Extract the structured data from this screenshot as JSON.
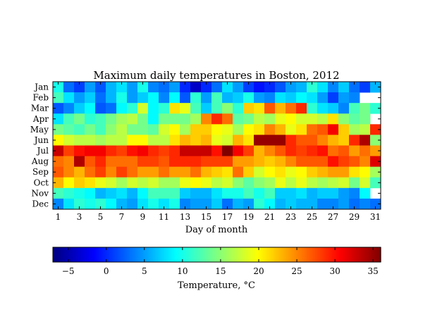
{
  "chart_data": {
    "type": "heatmap",
    "title": "Maximum daily temperatures in Boston, 2012",
    "xlabel": "Day of month",
    "colorbar_label": "Temperature, °C",
    "colormap": "jet",
    "vmin": -7,
    "vmax": 36,
    "colorbar_ticks": [
      "−5",
      "0",
      "5",
      "10",
      "15",
      "20",
      "25",
      "30",
      "35"
    ],
    "colorbar_tick_values": [
      -5,
      0,
      5,
      10,
      15,
      20,
      25,
      30,
      35
    ],
    "x_tick_labels": [
      "1",
      "3",
      "5",
      "7",
      "9",
      "11",
      "13",
      "15",
      "17",
      "19",
      "21",
      "23",
      "25",
      "27",
      "29",
      "31"
    ],
    "x_tick_values": [
      1,
      3,
      5,
      7,
      9,
      11,
      13,
      15,
      17,
      19,
      21,
      23,
      25,
      27,
      29,
      31
    ],
    "y_labels": [
      "Jan",
      "Feb",
      "Mar",
      "Apr",
      "May",
      "Jun",
      "Jul",
      "Aug",
      "Sep",
      "Oct",
      "Nov",
      "Dec"
    ],
    "days": [
      1,
      2,
      3,
      4,
      5,
      6,
      7,
      8,
      9,
      10,
      11,
      12,
      13,
      14,
      15,
      16,
      17,
      18,
      19,
      20,
      21,
      22,
      23,
      24,
      25,
      26,
      27,
      28,
      29,
      30,
      31
    ],
    "values": [
      [
        10,
        3,
        1,
        5,
        2,
        6,
        8,
        5,
        10,
        4,
        3,
        5,
        0,
        -4,
        0,
        3,
        8,
        5,
        1,
        -1,
        0,
        2,
        5,
        6,
        11,
        8,
        4,
        7,
        3,
        1,
        6
      ],
      [
        12,
        8,
        5,
        7,
        3,
        6,
        10,
        5,
        7,
        9,
        4,
        9,
        2,
        11,
        5,
        12,
        6,
        7,
        10,
        5,
        4,
        8,
        7,
        9,
        8,
        5,
        1,
        5,
        4,
        null,
        null
      ],
      [
        2,
        4,
        7,
        9,
        2,
        3,
        9,
        11,
        18,
        9,
        11,
        21,
        19,
        12,
        7,
        12,
        15,
        11,
        22,
        21,
        27,
        23,
        26,
        29,
        11,
        8,
        7,
        4,
        12,
        14,
        11
      ],
      [
        8,
        12,
        14,
        11,
        12,
        14,
        16,
        17,
        14,
        9,
        14,
        14,
        14,
        16,
        25,
        29,
        26,
        13,
        14,
        17,
        16,
        19,
        20,
        18,
        18,
        17,
        21,
        15,
        13,
        14,
        null
      ],
      [
        14,
        13,
        12,
        14,
        12,
        15,
        17,
        14,
        14,
        13,
        18,
        20,
        16,
        22,
        22,
        20,
        19,
        16,
        20,
        21,
        25,
        23,
        19,
        21,
        26,
        27,
        31,
        22,
        16,
        17,
        29
      ],
      [
        20,
        18,
        17,
        17,
        16,
        17,
        17,
        20,
        20,
        17,
        17,
        21,
        23,
        22,
        23,
        19,
        18,
        23,
        21,
        35,
        35,
        35,
        29,
        27,
        27,
        25,
        23,
        22,
        29,
        34,
        15
      ],
      [
        33,
        28,
        30,
        31,
        31,
        29,
        28,
        30,
        31,
        29,
        28,
        29,
        33,
        33,
        33,
        30,
        36,
        31,
        28,
        23,
        25,
        27,
        29,
        28,
        29,
        30,
        26,
        27,
        24,
        26,
        24
      ],
      [
        26,
        25,
        34,
        27,
        29,
        26,
        26,
        26,
        28,
        28,
        27,
        29,
        29,
        29,
        28,
        28,
        28,
        24,
        24,
        23,
        22,
        23,
        25,
        27,
        27,
        27,
        30,
        28,
        27,
        25,
        32
      ],
      [
        27,
        25,
        23,
        26,
        28,
        25,
        28,
        26,
        24,
        24,
        26,
        24,
        24,
        26,
        23,
        22,
        21,
        26,
        22,
        18,
        20,
        21,
        19,
        20,
        22,
        23,
        24,
        24,
        21,
        20,
        16
      ],
      [
        23,
        20,
        22,
        21,
        19,
        18,
        16,
        18,
        17,
        18,
        16,
        16,
        19,
        20,
        19,
        17,
        18,
        15,
        13,
        15,
        16,
        19,
        17,
        19,
        17,
        16,
        17,
        18,
        14,
        18,
        12
      ],
      [
        12,
        11,
        10,
        9,
        6,
        7,
        8,
        6,
        9,
        12,
        12,
        12,
        7,
        6,
        6,
        8,
        10,
        10,
        12,
        10,
        12,
        7,
        7,
        8,
        6,
        7,
        7,
        5,
        4,
        9,
        null
      ],
      [
        4,
        8,
        11,
        10,
        11,
        9,
        6,
        5,
        8,
        10,
        8,
        10,
        4,
        5,
        5,
        7,
        3,
        6,
        5,
        11,
        9,
        6,
        7,
        6,
        6,
        4,
        4,
        5,
        3,
        4,
        3
      ]
    ]
  }
}
